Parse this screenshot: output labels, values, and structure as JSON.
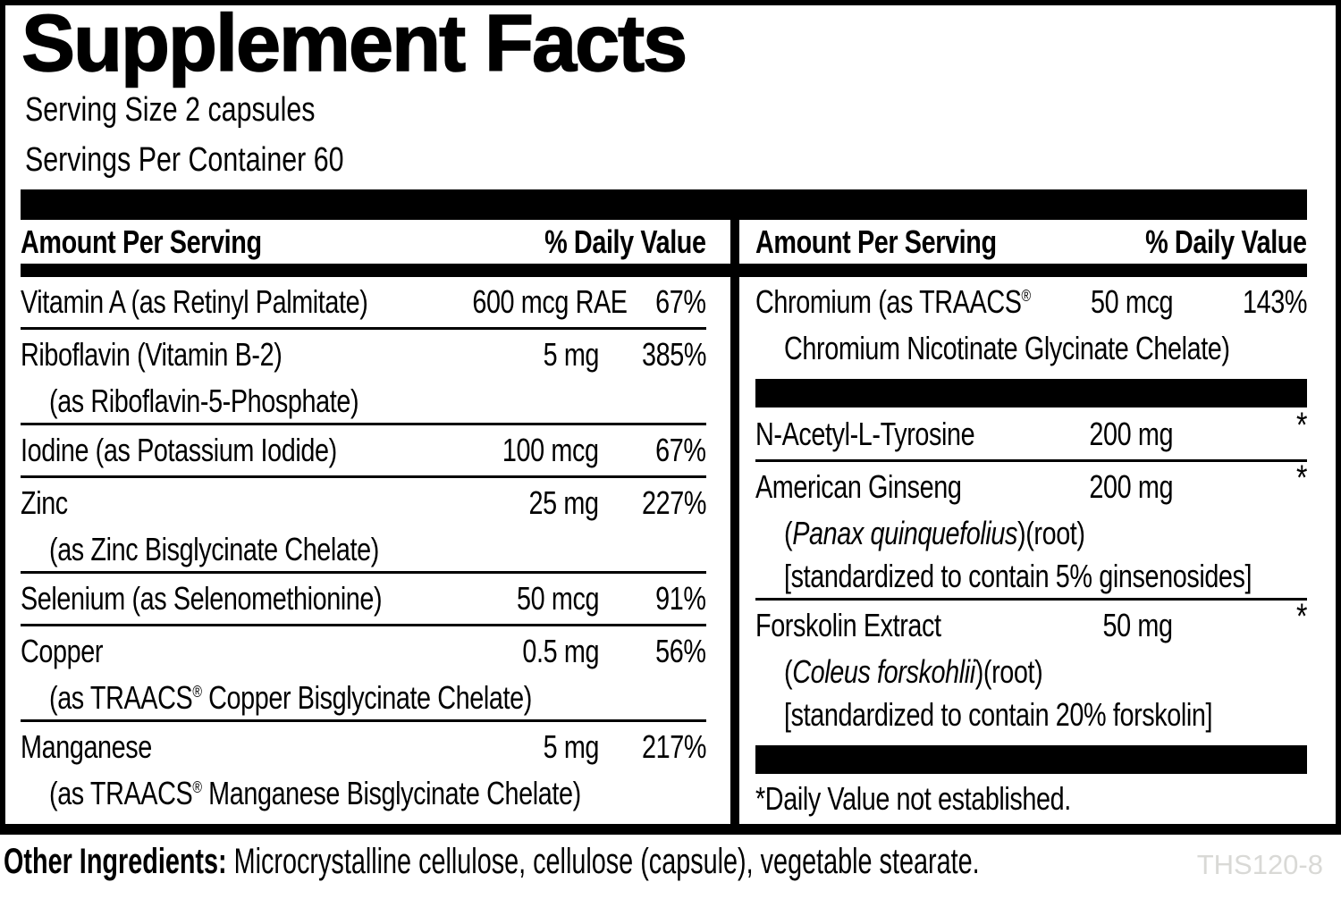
{
  "label": {
    "title": "Supplement Facts",
    "serving_size": "Serving Size 2 capsules",
    "servings_per_container": "Servings Per Container 60"
  },
  "colors": {
    "text": "#000000",
    "background": "#ffffff",
    "product_code": "#d9d9d6"
  },
  "table": {
    "left": {
      "header": {
        "amount": "Amount Per Serving",
        "dv": "% Daily Value"
      },
      "rows": [
        {
          "type": "row",
          "name": "Vitamin A (as Retinyl Palmitate)",
          "amount": "600 mcg RAE",
          "dv": "67%"
        },
        {
          "type": "row",
          "name": "Riboflavin (Vitamin B-2)",
          "amount": "5 mg",
          "dv": "385%",
          "subs": [
            {
              "text": "(as Riboflavin-5-Phosphate)"
            }
          ]
        },
        {
          "type": "row",
          "name": "Iodine (as Potassium Iodide)",
          "amount": "100 mcg",
          "dv": "67%"
        },
        {
          "type": "row",
          "name": "Zinc",
          "amount": "25 mg",
          "dv": "227%",
          "subs": [
            {
              "text": "(as Zinc Bisglycinate Chelate)"
            }
          ]
        },
        {
          "type": "row",
          "name": "Selenium (as Selenomethionine)",
          "amount": "50 mcg",
          "dv": "91%"
        },
        {
          "type": "row",
          "name": "Copper",
          "amount": "0.5 mg",
          "dv": "56%",
          "subs": [
            {
              "pre": "(as TRAACS",
              "reg": "®",
              "post": " Copper Bisglycinate Chelate)"
            }
          ]
        },
        {
          "type": "row",
          "name": "Manganese",
          "amount": "5 mg",
          "dv": "217%",
          "subs": [
            {
              "pre": "(as TRAACS",
              "reg": "®",
              "post": " Manganese Bisglycinate Chelate)"
            }
          ]
        }
      ]
    },
    "right": {
      "header": {
        "amount": "Amount Per Serving",
        "dv": "% Daily Value"
      },
      "rows": [
        {
          "type": "row",
          "name": "Chromium (as TRAACS",
          "name_reg": "®",
          "amount": "50 mcg",
          "dv": "143%",
          "subs": [
            {
              "text": "Chromium Nicotinate Glycinate Chelate)"
            }
          ]
        },
        {
          "type": "bar"
        },
        {
          "type": "row",
          "name": "N-Acetyl-L-Tyrosine",
          "amount": "200 mg",
          "dv": "*"
        },
        {
          "type": "row",
          "name": "American Ginseng",
          "amount": "200 mg",
          "dv": "*",
          "subs": [
            {
              "pre": "(",
              "italic": "Panax quinquefolius",
              "post": ")(root)"
            },
            {
              "text": "[standardized to contain 5% ginsenosides]"
            }
          ]
        },
        {
          "type": "row",
          "name": "Forskolin Extract",
          "amount": "50 mg",
          "dv": "*",
          "subs": [
            {
              "pre": "(",
              "italic": "Coleus forskohlii",
              "post": ")(root)"
            },
            {
              "text": "[standardized to contain 20% forskolin]"
            }
          ]
        },
        {
          "type": "bar"
        },
        {
          "type": "note",
          "text": "*Daily Value not established."
        }
      ]
    }
  },
  "footer": {
    "other_ingredients_label": "Other Ingredients:",
    "other_ingredients_text": " Microcrystalline cellulose, cellulose (capsule), vegetable stearate.",
    "code": "THS120-8"
  }
}
